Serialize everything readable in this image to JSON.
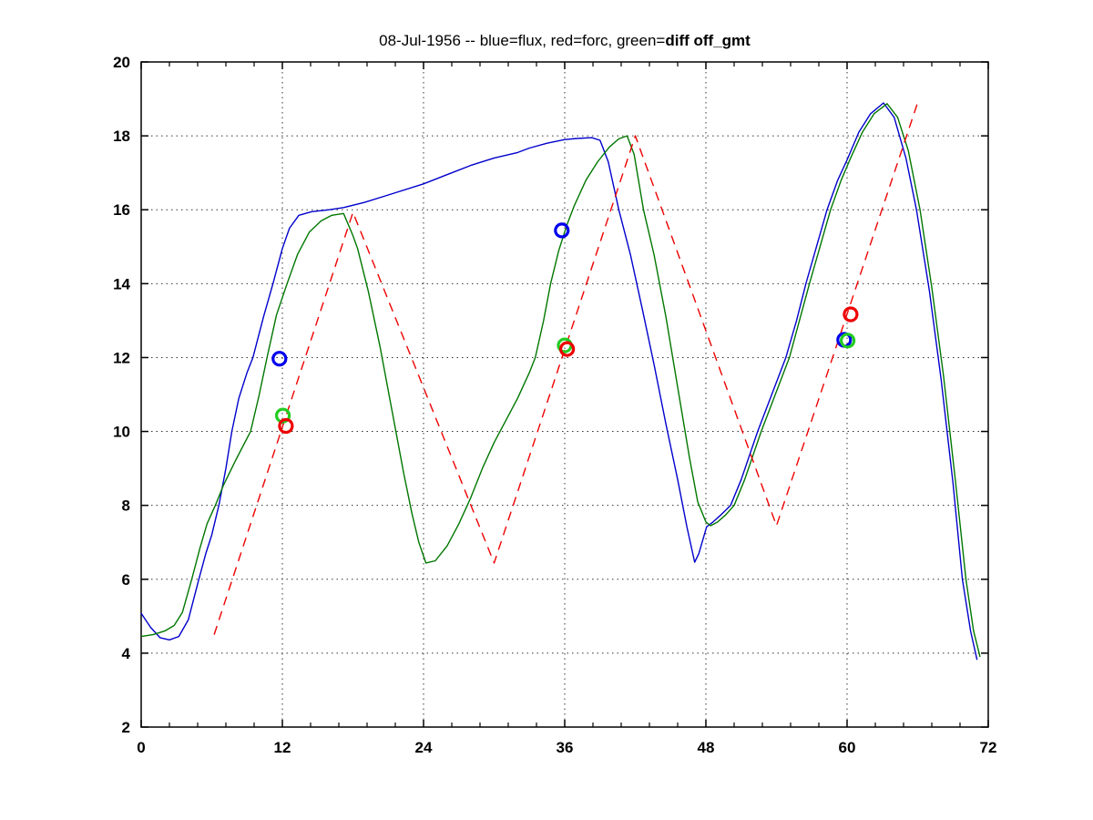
{
  "title": {
    "regular": "08-Jul-1956 -- blue=flux, red=forc, green=",
    "bold": "diff off_gmt",
    "full": "08-Jul-1956 -- blue=flux, red=forc, green=diff off_gmt"
  },
  "chart_data": {
    "type": "line",
    "title": "08-Jul-1956 -- blue=flux, red=forc, green=diff off_gmt",
    "xlabel": "",
    "ylabel": "",
    "xlim": [
      0,
      72
    ],
    "ylim": [
      2,
      20
    ],
    "xticks": [
      0,
      12,
      24,
      36,
      48,
      60,
      72
    ],
    "yticks": [
      2,
      4,
      6,
      8,
      10,
      12,
      14,
      16,
      18,
      20
    ],
    "x_minor_divisions": 5,
    "grid": true,
    "legend_position": "none (legend encoded in title)",
    "colors": {
      "flux_line": "#0000cc",
      "forc_line": "#ee0000",
      "diff_line": "#007700",
      "flux_marker": "#0000ee",
      "forc_marker": "#ee0000",
      "diff_marker": "#22cc22",
      "axis": "#000000",
      "grid": "#333333"
    },
    "series": [
      {
        "name": "flux",
        "color_key": "flux_line",
        "style": "solid",
        "points": [
          [
            0,
            5.08
          ],
          [
            0.8,
            4.7
          ],
          [
            1.6,
            4.42
          ],
          [
            2.4,
            4.36
          ],
          [
            3.2,
            4.45
          ],
          [
            4,
            4.9
          ],
          [
            4.9,
            6.0
          ],
          [
            5.5,
            6.7
          ],
          [
            6,
            7.2
          ],
          [
            6.6,
            8.0
          ],
          [
            7.2,
            9.0
          ],
          [
            7.7,
            10.0
          ],
          [
            8.3,
            10.9
          ],
          [
            9,
            11.6
          ],
          [
            9.5,
            12.0
          ],
          [
            10.4,
            13.1
          ],
          [
            11.2,
            14.0
          ],
          [
            12,
            14.95
          ],
          [
            12.6,
            15.5
          ],
          [
            13.4,
            15.85
          ],
          [
            14.5,
            15.95
          ],
          [
            16,
            16.0
          ],
          [
            17.2,
            16.06
          ],
          [
            19,
            16.2
          ],
          [
            21,
            16.4
          ],
          [
            24,
            16.7
          ],
          [
            26,
            16.95
          ],
          [
            28,
            17.2
          ],
          [
            30,
            17.4
          ],
          [
            32,
            17.55
          ],
          [
            33,
            17.67
          ],
          [
            34.5,
            17.8
          ],
          [
            36,
            17.9
          ],
          [
            37,
            17.93
          ],
          [
            38.3,
            17.95
          ],
          [
            39,
            17.88
          ],
          [
            39.7,
            17.3
          ],
          [
            40.6,
            16.0
          ],
          [
            41.6,
            14.77
          ],
          [
            42.6,
            13.3
          ],
          [
            43.6,
            11.8
          ],
          [
            44.6,
            10.2
          ],
          [
            45.6,
            8.7
          ],
          [
            46.4,
            7.4
          ],
          [
            47.05,
            6.46
          ],
          [
            47.4,
            6.7
          ],
          [
            48.06,
            7.42
          ],
          [
            48.6,
            7.55
          ],
          [
            49.3,
            7.75
          ],
          [
            50.1,
            8.0
          ],
          [
            51,
            8.7
          ],
          [
            52.4,
            10.0
          ],
          [
            53.6,
            11.0
          ],
          [
            54.8,
            12.0
          ],
          [
            55.7,
            13.0
          ],
          [
            56.5,
            14.0
          ],
          [
            57.4,
            15.0
          ],
          [
            58.3,
            16.0
          ],
          [
            59.2,
            16.8
          ],
          [
            60,
            17.35
          ],
          [
            61,
            18.1
          ],
          [
            62,
            18.6
          ],
          [
            63.1,
            18.89
          ],
          [
            64,
            18.5
          ],
          [
            65,
            17.4
          ],
          [
            65.9,
            16.0
          ],
          [
            67,
            13.8
          ],
          [
            68,
            11.4
          ],
          [
            69,
            8.6
          ],
          [
            69.8,
            6.0
          ],
          [
            70.5,
            4.6
          ],
          [
            71.05,
            3.82
          ]
        ]
      },
      {
        "name": "diff",
        "color_key": "diff_line",
        "style": "solid",
        "points": [
          [
            0,
            4.45
          ],
          [
            1,
            4.5
          ],
          [
            2,
            4.6
          ],
          [
            2.8,
            4.75
          ],
          [
            3.5,
            5.1
          ],
          [
            4.3,
            6.0
          ],
          [
            5,
            6.85
          ],
          [
            5.6,
            7.5
          ],
          [
            6.3,
            8.0
          ],
          [
            7,
            8.55
          ],
          [
            8,
            9.2
          ],
          [
            9.3,
            10.0
          ],
          [
            10,
            10.95
          ],
          [
            10.7,
            12.0
          ],
          [
            11.5,
            13.15
          ],
          [
            12.4,
            14.0
          ],
          [
            13.3,
            14.8
          ],
          [
            14.3,
            15.4
          ],
          [
            15.3,
            15.7
          ],
          [
            16.2,
            15.85
          ],
          [
            17.2,
            15.9
          ],
          [
            18,
            15.3
          ],
          [
            18.4,
            14.94
          ],
          [
            19.3,
            13.8
          ],
          [
            20.3,
            12.3
          ],
          [
            21.3,
            10.6
          ],
          [
            22.3,
            8.9
          ],
          [
            23,
            7.8
          ],
          [
            23.6,
            7.0
          ],
          [
            24.2,
            6.44
          ],
          [
            25,
            6.5
          ],
          [
            26,
            6.9
          ],
          [
            27,
            7.5
          ],
          [
            28,
            8.2
          ],
          [
            29,
            9.0
          ],
          [
            30,
            9.7
          ],
          [
            31,
            10.3
          ],
          [
            32,
            10.9
          ],
          [
            33,
            11.6
          ],
          [
            33.5,
            12.0
          ],
          [
            34.2,
            13.0
          ],
          [
            34.8,
            14.0
          ],
          [
            35.5,
            14.9
          ],
          [
            36.2,
            15.6
          ],
          [
            36.8,
            16.1
          ],
          [
            37.8,
            16.8
          ],
          [
            38.8,
            17.3
          ],
          [
            39.8,
            17.7
          ],
          [
            40.6,
            17.92
          ],
          [
            41.3,
            18.0
          ],
          [
            41.9,
            17.5
          ],
          [
            42.7,
            16.0
          ],
          [
            43.6,
            14.77
          ],
          [
            44.6,
            13.1
          ],
          [
            45.6,
            11.2
          ],
          [
            46.6,
            9.3
          ],
          [
            47.3,
            8.1
          ],
          [
            48,
            7.55
          ],
          [
            48.4,
            7.45
          ],
          [
            49,
            7.55
          ],
          [
            49.7,
            7.75
          ],
          [
            50.4,
            8.0
          ],
          [
            51.3,
            8.7
          ],
          [
            52.7,
            10.0
          ],
          [
            55.1,
            12.0
          ],
          [
            56.8,
            14.0
          ],
          [
            58.6,
            16.0
          ],
          [
            59.5,
            16.8
          ],
          [
            60.3,
            17.4
          ],
          [
            61.3,
            18.1
          ],
          [
            62.3,
            18.6
          ],
          [
            63.4,
            18.87
          ],
          [
            64.3,
            18.5
          ],
          [
            65.2,
            17.6
          ],
          [
            66.2,
            16.0
          ],
          [
            67.2,
            13.9
          ],
          [
            68.2,
            11.5
          ],
          [
            69.2,
            8.7
          ],
          [
            70.1,
            6.0
          ],
          [
            70.75,
            4.6
          ],
          [
            71.3,
            3.9
          ]
        ]
      },
      {
        "name": "forc",
        "color_key": "forc_line",
        "style": "dashed",
        "points": [
          [
            6.2,
            4.5
          ],
          [
            18,
            15.93
          ],
          [
            30,
            6.44
          ],
          [
            42,
            18.0
          ],
          [
            54,
            7.45
          ],
          [
            66,
            18.9
          ]
        ]
      }
    ],
    "markers": [
      {
        "name": "flux-markers",
        "color_key": "flux_marker",
        "points": [
          [
            11.75,
            11.97
          ],
          [
            35.75,
            15.44
          ],
          [
            59.75,
            12.48
          ]
        ]
      },
      {
        "name": "diff-markers",
        "color_key": "diff_marker",
        "points": [
          [
            12.05,
            10.43
          ],
          [
            36.0,
            12.33
          ],
          [
            60.05,
            12.46
          ]
        ]
      },
      {
        "name": "forc-markers",
        "color_key": "forc_marker",
        "points": [
          [
            12.3,
            10.15
          ],
          [
            36.2,
            12.23
          ],
          [
            60.3,
            13.17
          ]
        ]
      }
    ]
  }
}
